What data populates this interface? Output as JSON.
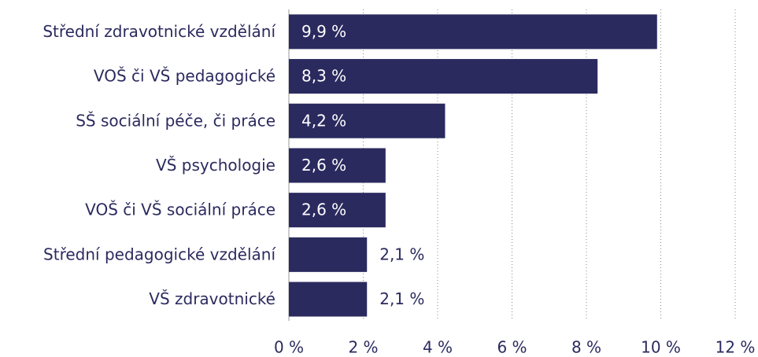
{
  "chart_data": {
    "type": "hbar",
    "categories": [
      "Střední zdravotnické vzdělání",
      "VOŠ či VŠ pedagogické",
      "SŠ sociální péče, či práce",
      "VŠ psychologie",
      "VOŠ či VŠ sociální práce",
      "Střední pedagogické vzdělání",
      "VŠ zdravotnické"
    ],
    "values": [
      9.9,
      8.3,
      4.2,
      2.6,
      2.6,
      2.1,
      2.1
    ],
    "value_labels": [
      "9,9 %",
      "8,3 %",
      "4,2 %",
      "2,6 %",
      "2,6 %",
      "2,1 %",
      "2,1 %"
    ],
    "color": "#2b2a5f",
    "xlim": [
      0,
      12
    ],
    "xticks": [
      {
        "value": 0,
        "label": "0 %"
      },
      {
        "value": 2,
        "label": "2 %"
      },
      {
        "value": 4,
        "label": "4 %"
      },
      {
        "value": 6,
        "label": "6 %"
      },
      {
        "value": 8,
        "label": "8 %"
      },
      {
        "value": 10,
        "label": "10 %"
      },
      {
        "value": 12,
        "label": "12 %"
      }
    ],
    "grid": true
  }
}
